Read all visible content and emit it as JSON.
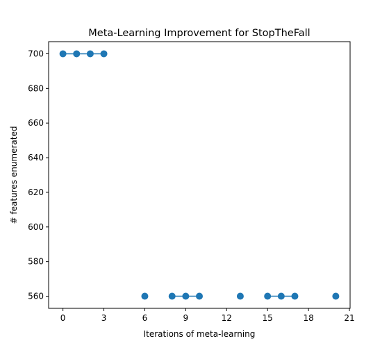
{
  "chart_data": {
    "type": "line",
    "title": "Meta-Learning Improvement for StopTheFall",
    "xlabel": "Iterations of meta-learning",
    "ylabel": "# features enumerated",
    "xlim": [
      -1.05,
      21.05
    ],
    "ylim": [
      553,
      707
    ],
    "xticks": [
      0,
      3,
      6,
      9,
      12,
      15,
      18,
      21
    ],
    "yticks": [
      560,
      580,
      600,
      620,
      640,
      660,
      680,
      700
    ],
    "grid": false,
    "legend": "none",
    "marker": "circle",
    "series": [
      {
        "color": "#1f77b4",
        "x": [
          0,
          1,
          2,
          3,
          4,
          5,
          6,
          7,
          8,
          9,
          10,
          11,
          12,
          13,
          14,
          15,
          16,
          17,
          18,
          19,
          20
        ],
        "y": [
          700,
          700,
          700,
          700,
          null,
          null,
          560,
          null,
          560,
          560,
          560,
          null,
          null,
          560,
          null,
          560,
          560,
          560,
          null,
          null,
          560
        ]
      }
    ]
  }
}
